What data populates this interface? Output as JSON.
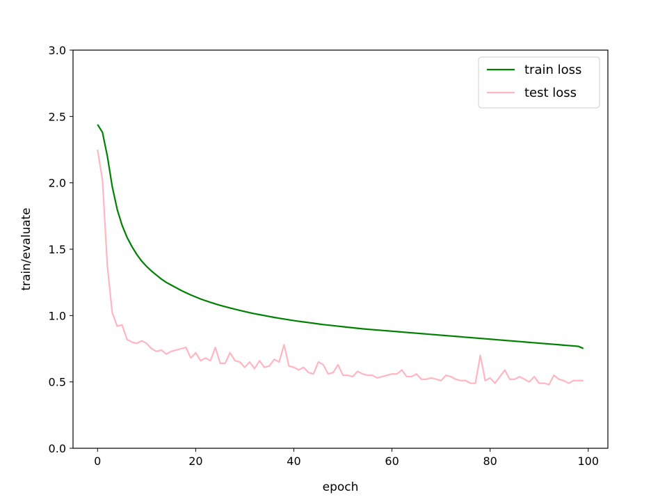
{
  "chart_data": {
    "type": "line",
    "xlabel": "epoch",
    "ylabel": "train/evaluate",
    "xlim": [
      -5,
      104
    ],
    "ylim": [
      0,
      3.0
    ],
    "xticks": [
      0,
      20,
      40,
      60,
      80,
      100
    ],
    "yticks": [
      0.0,
      0.5,
      1.0,
      1.5,
      2.0,
      2.5,
      3.0
    ],
    "xtick_labels": [
      "0",
      "20",
      "40",
      "60",
      "80",
      "100"
    ],
    "ytick_labels": [
      "0.0",
      "0.5",
      "1.0",
      "1.5",
      "2.0",
      "2.5",
      "3.0"
    ],
    "grid": false,
    "legend_position": "top-right",
    "series": [
      {
        "name": "train loss",
        "color": "#008000",
        "x": [
          0,
          1,
          2,
          3,
          4,
          5,
          6,
          7,
          8,
          9,
          10,
          11,
          12,
          13,
          14,
          15,
          16,
          17,
          18,
          19,
          20,
          21,
          22,
          23,
          24,
          25,
          26,
          27,
          28,
          29,
          30,
          31,
          32,
          33,
          34,
          35,
          36,
          37,
          38,
          39,
          40,
          41,
          42,
          43,
          44,
          45,
          46,
          47,
          48,
          49,
          50,
          51,
          52,
          53,
          54,
          55,
          56,
          57,
          58,
          59,
          60,
          61,
          62,
          63,
          64,
          65,
          66,
          67,
          68,
          69,
          70,
          71,
          72,
          73,
          74,
          75,
          76,
          77,
          78,
          79,
          80,
          81,
          82,
          83,
          84,
          85,
          86,
          87,
          88,
          89,
          90,
          91,
          92,
          93,
          94,
          95,
          96,
          97,
          98,
          99
        ],
        "y": [
          2.44,
          2.38,
          2.2,
          1.97,
          1.8,
          1.68,
          1.59,
          1.52,
          1.46,
          1.41,
          1.37,
          1.335,
          1.305,
          1.275,
          1.25,
          1.23,
          1.21,
          1.19,
          1.172,
          1.155,
          1.14,
          1.125,
          1.112,
          1.1,
          1.088,
          1.077,
          1.067,
          1.057,
          1.048,
          1.039,
          1.03,
          1.022,
          1.014,
          1.007,
          1.0,
          0.993,
          0.986,
          0.98,
          0.974,
          0.968,
          0.962,
          0.957,
          0.952,
          0.947,
          0.942,
          0.937,
          0.932,
          0.928,
          0.924,
          0.92,
          0.916,
          0.912,
          0.908,
          0.904,
          0.9,
          0.897,
          0.894,
          0.891,
          0.888,
          0.885,
          0.882,
          0.879,
          0.876,
          0.873,
          0.87,
          0.867,
          0.864,
          0.861,
          0.858,
          0.855,
          0.852,
          0.849,
          0.846,
          0.843,
          0.84,
          0.837,
          0.834,
          0.831,
          0.828,
          0.825,
          0.822,
          0.819,
          0.816,
          0.813,
          0.81,
          0.807,
          0.804,
          0.801,
          0.798,
          0.795,
          0.792,
          0.789,
          0.786,
          0.783,
          0.78,
          0.777,
          0.774,
          0.771,
          0.768,
          0.752
        ]
      },
      {
        "name": "test loss",
        "color": "#ffb6c1",
        "x": [
          0,
          1,
          2,
          3,
          4,
          5,
          6,
          7,
          8,
          9,
          10,
          11,
          12,
          13,
          14,
          15,
          16,
          17,
          18,
          19,
          20,
          21,
          22,
          23,
          24,
          25,
          26,
          27,
          28,
          29,
          30,
          31,
          32,
          33,
          34,
          35,
          36,
          37,
          38,
          39,
          40,
          41,
          42,
          43,
          44,
          45,
          46,
          47,
          48,
          49,
          50,
          51,
          52,
          53,
          54,
          55,
          56,
          57,
          58,
          59,
          60,
          61,
          62,
          63,
          64,
          65,
          66,
          67,
          68,
          69,
          70,
          71,
          72,
          73,
          74,
          75,
          76,
          77,
          78,
          79,
          80,
          81,
          82,
          83,
          84,
          85,
          86,
          87,
          88,
          89,
          90,
          91,
          92,
          93,
          94,
          95,
          96,
          97,
          98,
          99
        ],
        "y": [
          2.25,
          2.02,
          1.37,
          1.02,
          0.92,
          0.93,
          0.82,
          0.8,
          0.79,
          0.81,
          0.79,
          0.75,
          0.73,
          0.74,
          0.71,
          0.73,
          0.74,
          0.75,
          0.76,
          0.68,
          0.72,
          0.66,
          0.68,
          0.66,
          0.76,
          0.64,
          0.64,
          0.72,
          0.66,
          0.65,
          0.61,
          0.65,
          0.6,
          0.66,
          0.61,
          0.62,
          0.67,
          0.65,
          0.78,
          0.62,
          0.61,
          0.59,
          0.61,
          0.57,
          0.56,
          0.65,
          0.63,
          0.56,
          0.57,
          0.63,
          0.55,
          0.55,
          0.54,
          0.58,
          0.56,
          0.55,
          0.55,
          0.53,
          0.54,
          0.55,
          0.56,
          0.56,
          0.59,
          0.54,
          0.54,
          0.56,
          0.52,
          0.52,
          0.53,
          0.52,
          0.51,
          0.55,
          0.54,
          0.52,
          0.51,
          0.51,
          0.49,
          0.49,
          0.7,
          0.51,
          0.53,
          0.49,
          0.54,
          0.59,
          0.52,
          0.52,
          0.54,
          0.52,
          0.5,
          0.54,
          0.49,
          0.49,
          0.48,
          0.55,
          0.52,
          0.51,
          0.49,
          0.51,
          0.51,
          0.51
        ]
      }
    ]
  }
}
